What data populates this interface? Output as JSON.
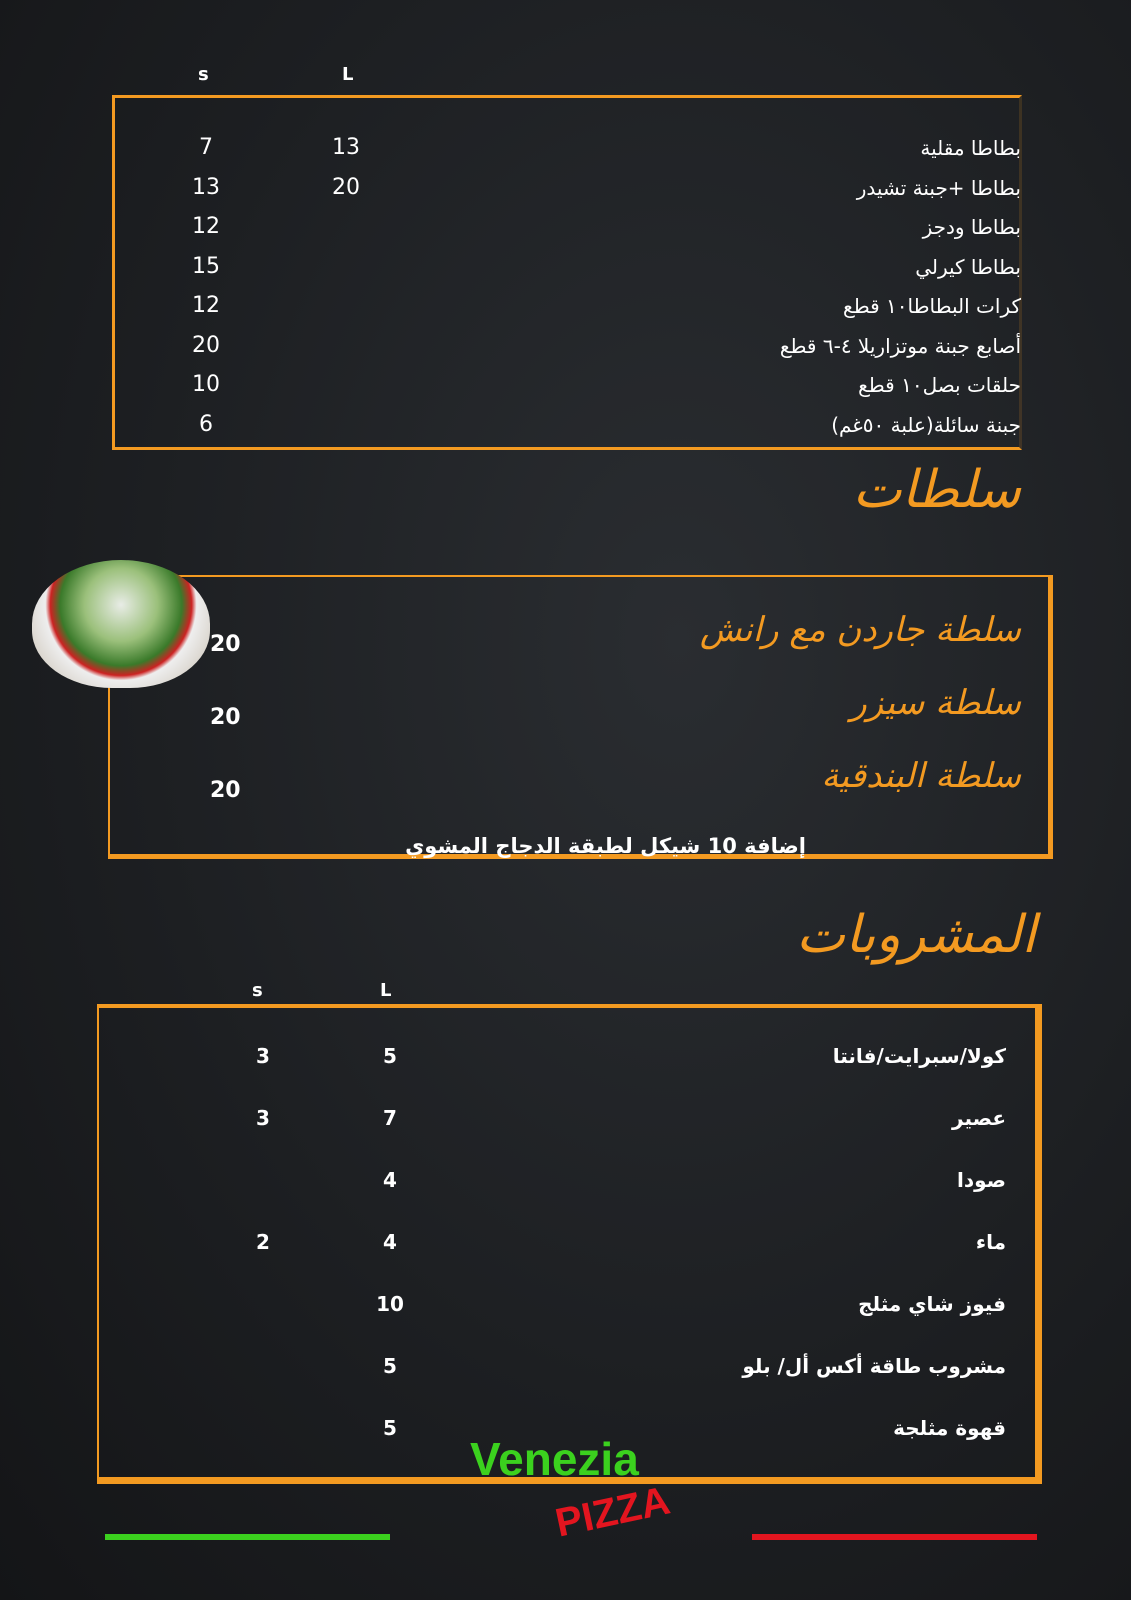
{
  "fries": {
    "col_s": "s",
    "col_l": "L",
    "items": [
      {
        "name": "بطاطا مقلية",
        "s": "7",
        "l": "13"
      },
      {
        "name": "بطاطا +جبنة تشيدر",
        "s": "13",
        "l": "20"
      },
      {
        "name": "بطاطا ودجز",
        "s": "12",
        "l": ""
      },
      {
        "name": "بطاطا كيرلي",
        "s": "15",
        "l": ""
      },
      {
        "name": "كرات البطاطا١٠ قطع",
        "s": "12",
        "l": ""
      },
      {
        "name": "أصابع جبنة موتزاريلا ٤-٦ قطع",
        "s": "20",
        "l": ""
      },
      {
        "name": "حلقات بصل١٠ قطع",
        "s": "10",
        "l": ""
      },
      {
        "name": "جبنة سائلة(علبة ٥٠غم)",
        "s": "6",
        "l": ""
      }
    ]
  },
  "salads": {
    "title": "سلطات",
    "items": [
      {
        "name": "سلطة جاردن مع رانش",
        "price": "20"
      },
      {
        "name": "سلطة سيزر",
        "price": "20"
      },
      {
        "name": "سلطة البندقية",
        "price": "20"
      }
    ],
    "note": "إضافة 10 شيكل لطبقة الدجاج المشوي"
  },
  "drinks": {
    "title": "المشروبات",
    "col_s": "s",
    "col_l": "L",
    "items": [
      {
        "name": "كولا/سبرايت/فانتا",
        "s": "3",
        "l": "5"
      },
      {
        "name": "عصير",
        "s": "3",
        "l": "7"
      },
      {
        "name": "صودا",
        "s": "",
        "l": "4"
      },
      {
        "name": "ماء",
        "s": "2",
        "l": "4"
      },
      {
        "name": "فيوز شاي مثلج",
        "s": "",
        "l": "10"
      },
      {
        "name": "مشروب طاقة أكس أل/ بلو",
        "s": "",
        "l": "5"
      },
      {
        "name": "قهوة مثلجة",
        "s": "",
        "l": "5"
      }
    ]
  },
  "logo": {
    "brand": "Venezia",
    "sub": "Pizza"
  },
  "colors": {
    "accent": "#f39a21",
    "green": "#3bd11e",
    "red": "#e3151f"
  }
}
